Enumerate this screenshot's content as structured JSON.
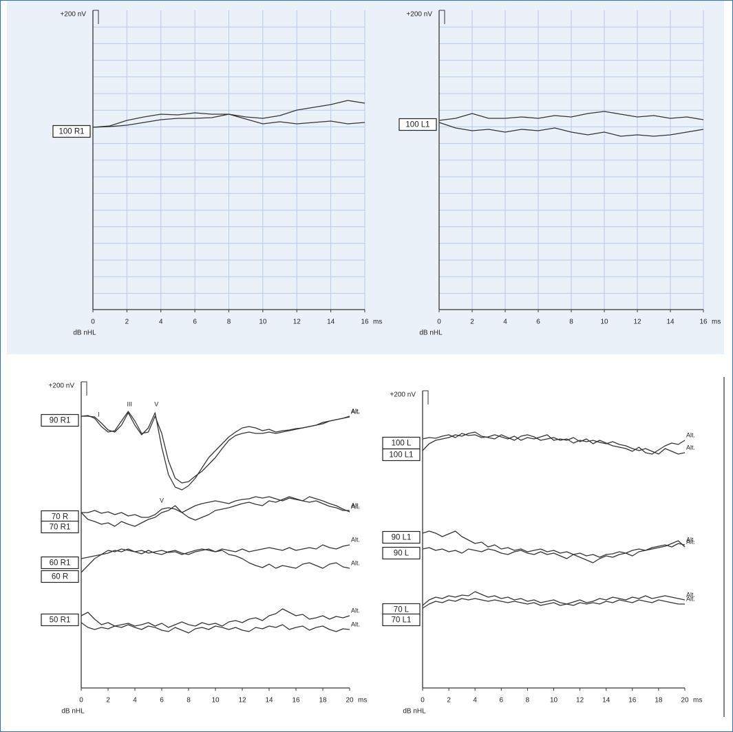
{
  "chart_data": [
    {
      "type": "line",
      "scale_bar": {
        "value": 200,
        "label": "+200 nV"
      },
      "x_unit": "ms",
      "y_label": "dB nHL",
      "grid": true,
      "xlim": [
        0,
        16
      ],
      "xticks": [
        0,
        2,
        4,
        6,
        8,
        10,
        12,
        14,
        16
      ],
      "ylim": [
        -4150,
        200
      ],
      "x": [
        0,
        1,
        2,
        3,
        4,
        5,
        6,
        7,
        8,
        9,
        10,
        11,
        12,
        13,
        14,
        15,
        16
      ],
      "series": [
        {
          "name": "100 R1",
          "color": "#333333",
          "values": [
            -1500,
            -1480,
            -1400,
            -1350,
            -1310,
            -1320,
            -1290,
            -1310,
            -1310,
            -1350,
            -1370,
            -1330,
            -1250,
            -1210,
            -1170,
            -1110,
            -1150
          ]
        },
        {
          "color": "#333333",
          "values": [
            -1500,
            -1490,
            -1470,
            -1430,
            -1390,
            -1370,
            -1370,
            -1360,
            -1310,
            -1380,
            -1450,
            -1420,
            -1450,
            -1430,
            -1410,
            -1450,
            -1430
          ]
        }
      ]
    },
    {
      "type": "line",
      "scale_bar": {
        "value": 200,
        "label": "+200 nV"
      },
      "x_unit": "ms",
      "y_label": "dB nHL",
      "grid": true,
      "xlim": [
        0,
        16
      ],
      "xticks": [
        0,
        2,
        4,
        6,
        8,
        10,
        12,
        14,
        16
      ],
      "ylim": [
        -4150,
        200
      ],
      "x": [
        0,
        1,
        2,
        3,
        4,
        5,
        6,
        7,
        8,
        9,
        10,
        11,
        12,
        13,
        14,
        15,
        16
      ],
      "series": [
        {
          "name": "100 L1",
          "color": "#333333",
          "values": [
            -1400,
            -1370,
            -1300,
            -1370,
            -1370,
            -1350,
            -1370,
            -1330,
            -1350,
            -1300,
            -1270,
            -1310,
            -1350,
            -1330,
            -1370,
            -1350,
            -1390
          ]
        },
        {
          "color": "#333333",
          "values": [
            -1430,
            -1510,
            -1550,
            -1530,
            -1570,
            -1530,
            -1550,
            -1510,
            -1570,
            -1610,
            -1570,
            -1630,
            -1610,
            -1630,
            -1610,
            -1570,
            -1530
          ]
        }
      ]
    },
    {
      "type": "line",
      "scale_bar": {
        "value": 200,
        "label": "+200 nV"
      },
      "x_unit": "ms",
      "y_label": "dB nHL",
      "grid": false,
      "xlim": [
        0,
        20
      ],
      "xticks": [
        0,
        2,
        4,
        6,
        8,
        10,
        12,
        14,
        16,
        18,
        20
      ],
      "ylim": [
        -4250,
        200
      ],
      "x": [
        0,
        0.5,
        1,
        1.5,
        2,
        2.5,
        3,
        3.5,
        4,
        4.5,
        5,
        5.5,
        6,
        6.5,
        7,
        7.5,
        8,
        8.5,
        9,
        9.5,
        10,
        10.5,
        11,
        11.5,
        12,
        12.5,
        13,
        13.5,
        14,
        14.5,
        15,
        15.5,
        16,
        16.5,
        17,
        17.5,
        18,
        18.5,
        19,
        19.5,
        20
      ],
      "series": [
        {
          "name": "90 R1",
          "color": "#333333",
          "end_label": "Alt.",
          "peaks": [
            {
              "label": "I",
              "x": 1.3
            },
            {
              "label": "III",
              "x": 3.6
            },
            {
              "label": "V",
              "x": 5.6
            }
          ],
          "values": [
            -300,
            -300,
            -310,
            -400,
            -500,
            -530,
            -430,
            -250,
            -430,
            -570,
            -470,
            -250,
            -750,
            -1150,
            -1330,
            -1370,
            -1310,
            -1200,
            -1050,
            -900,
            -800,
            -700,
            -600,
            -530,
            -470,
            -450,
            -470,
            -510,
            -490,
            -530,
            -510,
            -500,
            -480,
            -470,
            -450,
            -430,
            -410,
            -370,
            -350,
            -330,
            -300
          ]
        },
        {
          "color": "#333333",
          "end_label": "Alt.",
          "values": [
            -300,
            -290,
            -330,
            -450,
            -530,
            -510,
            -370,
            -230,
            -370,
            -550,
            -530,
            -300,
            -550,
            -950,
            -1200,
            -1270,
            -1250,
            -1170,
            -1100,
            -1000,
            -900,
            -770,
            -650,
            -580,
            -550,
            -530,
            -550,
            -550,
            -530,
            -550,
            -530,
            -510,
            -490,
            -470,
            -450,
            -430,
            -390,
            -370,
            -350,
            -330,
            -310
          ]
        },
        {
          "name": "70 R",
          "color": "#333333",
          "end_label": "Alt.",
          "peaks": [
            {
              "label": "V",
              "x": 6
            }
          ],
          "values": [
            -1700,
            -1700,
            -1670,
            -1710,
            -1690,
            -1730,
            -1700,
            -1750,
            -1730,
            -1770,
            -1770,
            -1730,
            -1650,
            -1630,
            -1650,
            -1700,
            -1650,
            -1600,
            -1570,
            -1550,
            -1530,
            -1550,
            -1570,
            -1530,
            -1510,
            -1500,
            -1470,
            -1490,
            -1470,
            -1500,
            -1530,
            -1490,
            -1510,
            -1530,
            -1550,
            -1530,
            -1570,
            -1610,
            -1630,
            -1670,
            -1670
          ]
        },
        {
          "name": "70 R1",
          "color": "#333333",
          "end_label": "Alt.",
          "values": [
            -1700,
            -1800,
            -1830,
            -1870,
            -1850,
            -1900,
            -1830,
            -1870,
            -1900,
            -1850,
            -1800,
            -1770,
            -1700,
            -1670,
            -1600,
            -1700,
            -1770,
            -1810,
            -1770,
            -1730,
            -1670,
            -1650,
            -1630,
            -1600,
            -1570,
            -1550,
            -1580,
            -1600,
            -1530,
            -1550,
            -1510,
            -1470,
            -1500,
            -1530,
            -1470,
            -1500,
            -1530,
            -1570,
            -1600,
            -1650,
            -1690
          ]
        },
        {
          "name": "60 R1",
          "color": "#333333",
          "end_label": "Alt.",
          "values": [
            -2370,
            -2350,
            -2330,
            -2310,
            -2250,
            -2270,
            -2230,
            -2250,
            -2270,
            -2250,
            -2290,
            -2270,
            -2250,
            -2280,
            -2270,
            -2310,
            -2280,
            -2250,
            -2230,
            -2250,
            -2270,
            -2230,
            -2250,
            -2270,
            -2230,
            -2270,
            -2250,
            -2230,
            -2210,
            -2230,
            -2250,
            -2210,
            -2250,
            -2230,
            -2210,
            -2230,
            -2170,
            -2210,
            -2230,
            -2190,
            -2170
          ]
        },
        {
          "name": "60 R",
          "color": "#333333",
          "end_label": "Alt.",
          "values": [
            -2570,
            -2470,
            -2370,
            -2310,
            -2290,
            -2250,
            -2270,
            -2230,
            -2270,
            -2300,
            -2250,
            -2290,
            -2310,
            -2270,
            -2250,
            -2290,
            -2310,
            -2270,
            -2250,
            -2230,
            -2270,
            -2250,
            -2310,
            -2330,
            -2370,
            -2430,
            -2470,
            -2500,
            -2450,
            -2510,
            -2470,
            -2490,
            -2510,
            -2450,
            -2430,
            -2470,
            -2510,
            -2450,
            -2430,
            -2490,
            -2510
          ]
        },
        {
          "name": "50 R1",
          "color": "#333333",
          "end_label": "Alt.",
          "values": [
            -3200,
            -3150,
            -3250,
            -3330,
            -3300,
            -3350,
            -3330,
            -3310,
            -3350,
            -3330,
            -3300,
            -3350,
            -3310,
            -3370,
            -3330,
            -3290,
            -3330,
            -3350,
            -3300,
            -3330,
            -3310,
            -3350,
            -3290,
            -3270,
            -3300,
            -3250,
            -3230,
            -3270,
            -3200,
            -3170,
            -3100,
            -3150,
            -3200,
            -3180,
            -3250,
            -3230,
            -3200,
            -3250,
            -3210,
            -3230,
            -3200
          ]
        },
        {
          "color": "#333333",
          "end_label": "Alt.",
          "values": [
            -3300,
            -3370,
            -3400,
            -3370,
            -3390,
            -3350,
            -3370,
            -3330,
            -3370,
            -3400,
            -3350,
            -3370,
            -3410,
            -3430,
            -3370,
            -3410,
            -3450,
            -3390,
            -3370,
            -3400,
            -3350,
            -3370,
            -3400,
            -3370,
            -3410,
            -3430,
            -3370,
            -3390,
            -3350,
            -3370,
            -3330,
            -3400,
            -3370,
            -3350,
            -3410,
            -3370,
            -3350,
            -3400,
            -3430,
            -3390,
            -3400
          ]
        }
      ]
    },
    {
      "type": "line",
      "scale_bar": {
        "value": 200,
        "label": "+200 nV"
      },
      "x_unit": "ms",
      "y_label": "dB nHL",
      "grid": false,
      "xlim": [
        0,
        20
      ],
      "xticks": [
        0,
        2,
        4,
        6,
        8,
        10,
        12,
        14,
        16,
        18,
        20
      ],
      "ylim": [
        -4120,
        200
      ],
      "x": [
        0,
        0.5,
        1,
        1.5,
        2,
        2.5,
        3,
        3.5,
        4,
        4.5,
        5,
        5.5,
        6,
        6.5,
        7,
        7.5,
        8,
        8.5,
        9,
        9.5,
        10,
        10.5,
        11,
        11.5,
        12,
        12.5,
        13,
        13.5,
        14,
        14.5,
        15,
        15.5,
        16,
        16.5,
        17,
        17.5,
        18,
        18.5,
        19,
        19.5,
        20
      ],
      "series": [
        {
          "name": "100 L",
          "color": "#333333",
          "end_label": "Alt.",
          "values": [
            -500,
            -480,
            -490,
            -460,
            -440,
            -480,
            -420,
            -450,
            -440,
            -480,
            -470,
            -440,
            -470,
            -500,
            -460,
            -520,
            -480,
            -500,
            -470,
            -440,
            -520,
            -500,
            -520,
            -480,
            -540,
            -500,
            -570,
            -520,
            -560,
            -600,
            -620,
            -640,
            -680,
            -620,
            -700,
            -720,
            -660,
            -600,
            -560,
            -580,
            -520
          ]
        },
        {
          "name": "100 L1",
          "color": "#333333",
          "end_label": "Alt.",
          "values": [
            -670,
            -570,
            -520,
            -500,
            -480,
            -440,
            -460,
            -420,
            -400,
            -460,
            -480,
            -500,
            -440,
            -480,
            -520,
            -460,
            -440,
            -470,
            -520,
            -500,
            -480,
            -520,
            -500,
            -560,
            -520,
            -540,
            -520,
            -550,
            -570,
            -540,
            -580,
            -600,
            -640,
            -670,
            -640,
            -680,
            -720,
            -640,
            -680,
            -720,
            -700
          ]
        },
        {
          "name": "90 L1",
          "color": "#333333",
          "end_label": "Alt.",
          "values": [
            -1870,
            -1840,
            -1870,
            -1920,
            -1880,
            -1840,
            -1920,
            -1970,
            -2020,
            -2000,
            -2070,
            -2040,
            -2100,
            -2080,
            -2120,
            -2100,
            -2140,
            -2120,
            -2100,
            -2140,
            -2120,
            -2160,
            -2140,
            -2180,
            -2160,
            -2200,
            -2180,
            -2220,
            -2180,
            -2170,
            -2140,
            -2160,
            -2120,
            -2100,
            -2120,
            -2080,
            -2060,
            -2040,
            -2070,
            -2020,
            -2040
          ]
        },
        {
          "name": "90 L",
          "color": "#333333",
          "end_label": "Alt.",
          "values": [
            -2100,
            -2080,
            -2120,
            -2100,
            -2140,
            -2120,
            -2160,
            -2100,
            -2120,
            -2140,
            -2100,
            -2120,
            -2160,
            -2180,
            -2140,
            -2120,
            -2160,
            -2180,
            -2140,
            -2180,
            -2160,
            -2200,
            -2240,
            -2180,
            -2220,
            -2260,
            -2300,
            -2240,
            -2200,
            -2220,
            -2180,
            -2160,
            -2200,
            -2140,
            -2120,
            -2100,
            -2080,
            -2060,
            -2020,
            -1980,
            -2070
          ]
        },
        {
          "name": "70 L",
          "color": "#333333",
          "end_label": "Alt.",
          "values": [
            -2920,
            -2840,
            -2800,
            -2820,
            -2780,
            -2800,
            -2770,
            -2780,
            -2720,
            -2760,
            -2800,
            -2780,
            -2820,
            -2800,
            -2840,
            -2820,
            -2860,
            -2840,
            -2880,
            -2860,
            -2840,
            -2880,
            -2900,
            -2870,
            -2840,
            -2880,
            -2860,
            -2820,
            -2840,
            -2800,
            -2820,
            -2840,
            -2800,
            -2820,
            -2780,
            -2820,
            -2800,
            -2780,
            -2800,
            -2820,
            -2840
          ]
        },
        {
          "name": "70 L1",
          "color": "#333333",
          "end_label": "Alt.",
          "values": [
            -2960,
            -2900,
            -2860,
            -2880,
            -2840,
            -2860,
            -2820,
            -2840,
            -2820,
            -2840,
            -2860,
            -2840,
            -2860,
            -2880,
            -2860,
            -2880,
            -2900,
            -2880,
            -2920,
            -2900,
            -2880,
            -2920,
            -2900,
            -2920,
            -2880,
            -2900,
            -2880,
            -2900,
            -2860,
            -2880,
            -2840,
            -2860,
            -2880,
            -2840,
            -2860,
            -2880,
            -2840,
            -2860,
            -2880,
            -2900,
            -2900
          ]
        }
      ]
    }
  ]
}
